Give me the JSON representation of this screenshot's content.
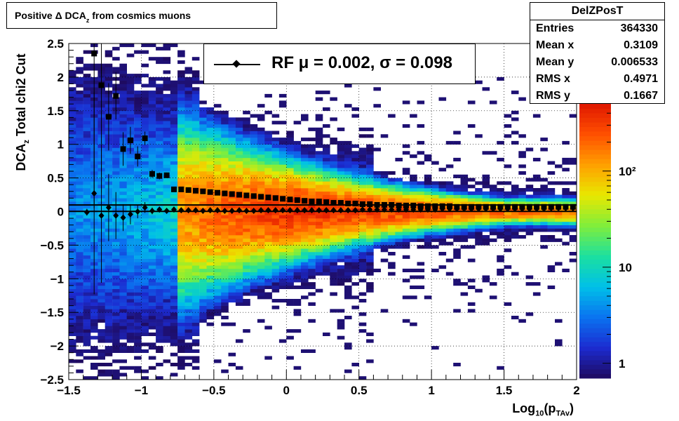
{
  "title": {
    "main": "Positive Δ DCA",
    "sub": "z",
    "rest": " from cosmics muons"
  },
  "stats": {
    "name": "DelZPosT",
    "rows": [
      {
        "label": "Entries",
        "value": "364330"
      },
      {
        "label": "Mean x",
        "value": "0.3109"
      },
      {
        "label": "Mean y",
        "value": "0.006533"
      },
      {
        "label": "RMS x",
        "value": "0.4971"
      },
      {
        "label": "RMS y",
        "value": "0.1667"
      }
    ]
  },
  "legend": {
    "text": "RF μ =  0.002, σ =   0.098"
  },
  "axes": {
    "x_title": {
      "pre": "Log",
      "sub1": "10",
      "mid": "(p",
      "sub2": "TAv",
      "post": ")"
    },
    "y_title": {
      "pre": "DCA",
      "sub": "z",
      "post": "  Total chi2 Cut"
    }
  },
  "colorbar": {
    "ticks": [
      "1",
      "10",
      "10²"
    ]
  },
  "chart_data": {
    "type": "heatmap",
    "xlim": [
      -1.5,
      2.0
    ],
    "ylim": [
      -2.5,
      2.5
    ],
    "x_ticks": [
      "−1.5",
      "−1",
      "−0.5",
      "0",
      "0.5",
      "1",
      "1.5",
      "2"
    ],
    "y_ticks": [
      "−2.5",
      "−2",
      "−1.5",
      "−1",
      "−0.5",
      "0",
      "0.5",
      "1",
      "1.5",
      "2",
      "2.5"
    ],
    "grid": true,
    "log_z": true,
    "zlim": [
      0.7,
      500
    ],
    "colormap": [
      "#1e0a5e",
      "#1c2bd0",
      "#0a73f0",
      "#00c0e8",
      "#1be0a0",
      "#7fee3c",
      "#e8e800",
      "#ffa000",
      "#ff5000",
      "#e01800"
    ],
    "mean_points": [
      {
        "x": -1.375,
        "y": -0.01,
        "err": 0.05
      },
      {
        "x": -1.325,
        "y": 0.27,
        "err": 1.5
      },
      {
        "x": -1.275,
        "y": -0.06,
        "err": 1.0
      },
      {
        "x": -1.225,
        "y": 0.06,
        "err": 0.5
      },
      {
        "x": -1.175,
        "y": -0.06,
        "err": 0.35
      },
      {
        "x": -1.125,
        "y": -0.09,
        "err": 0.2
      },
      {
        "x": -1.075,
        "y": -0.04,
        "err": 0.15
      },
      {
        "x": -1.025,
        "y": 0.0,
        "err": 0.1
      },
      {
        "x": -0.975,
        "y": 0.06,
        "err": 0.08
      },
      {
        "x": -0.925,
        "y": 0.01,
        "err": 0.05
      },
      {
        "x": -0.875,
        "y": 0.03,
        "err": 0.04
      },
      {
        "x": -0.825,
        "y": 0.01,
        "err": 0.03
      },
      {
        "x": -0.775,
        "y": 0.03,
        "err": 0.02
      },
      {
        "x": -0.725,
        "y": 0.02,
        "err": 0.0
      },
      {
        "x": -0.675,
        "y": 0.02,
        "err": 0.0
      },
      {
        "x": -0.625,
        "y": 0.02,
        "err": 0.0
      },
      {
        "x": -0.575,
        "y": 0.01,
        "err": 0.0
      },
      {
        "x": -0.525,
        "y": 0.02,
        "err": 0.0
      },
      {
        "x": -0.475,
        "y": 0.02,
        "err": 0.0
      },
      {
        "x": -0.425,
        "y": 0.01,
        "err": 0.0
      },
      {
        "x": -0.375,
        "y": 0.01,
        "err": 0.0
      },
      {
        "x": -0.325,
        "y": 0.02,
        "err": 0.0
      },
      {
        "x": -0.275,
        "y": 0.01,
        "err": 0.0
      },
      {
        "x": -0.225,
        "y": 0.01,
        "err": 0.0
      },
      {
        "x": -0.175,
        "y": 0.02,
        "err": 0.0
      },
      {
        "x": -0.125,
        "y": 0.02,
        "err": 0.0
      },
      {
        "x": -0.075,
        "y": 0.02,
        "err": 0.0
      },
      {
        "x": -0.025,
        "y": 0.02,
        "err": 0.0
      },
      {
        "x": 0.025,
        "y": 0.02,
        "err": 0.0
      },
      {
        "x": 0.075,
        "y": 0.02,
        "err": 0.0
      },
      {
        "x": 0.125,
        "y": 0.02,
        "err": 0.0
      },
      {
        "x": 0.175,
        "y": 0.02,
        "err": 0.0
      },
      {
        "x": 0.225,
        "y": 0.02,
        "err": 0.0
      },
      {
        "x": 0.275,
        "y": 0.02,
        "err": 0.0
      },
      {
        "x": 0.325,
        "y": 0.02,
        "err": 0.0
      },
      {
        "x": 0.375,
        "y": 0.02,
        "err": 0.0
      },
      {
        "x": 0.425,
        "y": 0.02,
        "err": 0.0
      },
      {
        "x": 0.475,
        "y": 0.02,
        "err": 0.0
      },
      {
        "x": 0.525,
        "y": 0.03,
        "err": 0.0
      },
      {
        "x": 0.575,
        "y": 0.03,
        "err": 0.0
      },
      {
        "x": 0.625,
        "y": 0.03,
        "err": 0.0
      },
      {
        "x": 0.675,
        "y": 0.03,
        "err": 0.0
      },
      {
        "x": 0.725,
        "y": 0.03,
        "err": 0.0
      },
      {
        "x": 0.775,
        "y": 0.03,
        "err": 0.0
      },
      {
        "x": 0.825,
        "y": 0.03,
        "err": 0.0
      },
      {
        "x": 0.875,
        "y": 0.03,
        "err": 0.0
      },
      {
        "x": 0.925,
        "y": 0.03,
        "err": 0.0
      },
      {
        "x": 0.975,
        "y": 0.03,
        "err": 0.0
      },
      {
        "x": 1.025,
        "y": 0.03,
        "err": 0.0
      },
      {
        "x": 1.075,
        "y": 0.04,
        "err": 0.0
      },
      {
        "x": 1.125,
        "y": 0.04,
        "err": 0.0
      },
      {
        "x": 1.175,
        "y": 0.04,
        "err": 0.0
      },
      {
        "x": 1.225,
        "y": 0.04,
        "err": 0.0
      },
      {
        "x": 1.275,
        "y": 0.04,
        "err": 0.0
      },
      {
        "x": 1.325,
        "y": 0.04,
        "err": 0.0
      },
      {
        "x": 1.375,
        "y": 0.04,
        "err": 0.0
      },
      {
        "x": 1.425,
        "y": 0.04,
        "err": 0.0
      },
      {
        "x": 1.475,
        "y": 0.04,
        "err": 0.0
      },
      {
        "x": 1.525,
        "y": 0.04,
        "err": 0.0
      },
      {
        "x": 1.575,
        "y": 0.04,
        "err": 0.0
      },
      {
        "x": 1.625,
        "y": 0.04,
        "err": 0.0
      },
      {
        "x": 1.675,
        "y": 0.04,
        "err": 0.0
      },
      {
        "x": 1.725,
        "y": 0.04,
        "err": 0.0
      },
      {
        "x": 1.775,
        "y": 0.04,
        "err": 0.0
      },
      {
        "x": 1.825,
        "y": 0.05,
        "err": 0.0
      },
      {
        "x": 1.875,
        "y": 0.05,
        "err": 0.0
      },
      {
        "x": 1.925,
        "y": 0.05,
        "err": 0.0
      },
      {
        "x": 1.975,
        "y": 0.05,
        "err": 0.0
      }
    ],
    "rms_points": [
      {
        "x": -1.325,
        "y": 2.35,
        "err": 2.3
      },
      {
        "x": -1.275,
        "y": 1.88,
        "err": 1.6
      },
      {
        "x": -1.225,
        "y": 1.41,
        "err": 0.5
      },
      {
        "x": -1.175,
        "y": 1.72,
        "err": 0.35
      },
      {
        "x": -1.125,
        "y": 0.93,
        "err": 0.25
      },
      {
        "x": -1.075,
        "y": 1.06,
        "err": 0.2
      },
      {
        "x": -1.025,
        "y": 0.82,
        "err": 0.15
      },
      {
        "x": -0.975,
        "y": 1.09,
        "err": 0.1
      },
      {
        "x": -0.925,
        "y": 0.56,
        "err": 0.06
      },
      {
        "x": -0.875,
        "y": 0.53,
        "err": 0.05
      },
      {
        "x": -0.825,
        "y": 0.54,
        "err": 0.04
      },
      {
        "x": -0.775,
        "y": 0.33,
        "err": 0.02
      },
      {
        "x": -0.725,
        "y": 0.33,
        "err": 0.0
      },
      {
        "x": -0.675,
        "y": 0.32,
        "err": 0.0
      },
      {
        "x": -0.625,
        "y": 0.31,
        "err": 0.0
      },
      {
        "x": -0.575,
        "y": 0.3,
        "err": 0.0
      },
      {
        "x": -0.525,
        "y": 0.29,
        "err": 0.0
      },
      {
        "x": -0.475,
        "y": 0.28,
        "err": 0.0
      },
      {
        "x": -0.425,
        "y": 0.27,
        "err": 0.0
      },
      {
        "x": -0.375,
        "y": 0.26,
        "err": 0.0
      },
      {
        "x": -0.325,
        "y": 0.25,
        "err": 0.0
      },
      {
        "x": -0.275,
        "y": 0.24,
        "err": 0.0
      },
      {
        "x": -0.225,
        "y": 0.23,
        "err": 0.0
      },
      {
        "x": -0.175,
        "y": 0.22,
        "err": 0.0
      },
      {
        "x": -0.125,
        "y": 0.21,
        "err": 0.0
      },
      {
        "x": -0.075,
        "y": 0.2,
        "err": 0.0
      },
      {
        "x": -0.025,
        "y": 0.19,
        "err": 0.0
      },
      {
        "x": 0.025,
        "y": 0.18,
        "err": 0.0
      },
      {
        "x": 0.075,
        "y": 0.17,
        "err": 0.0
      },
      {
        "x": 0.125,
        "y": 0.16,
        "err": 0.0
      },
      {
        "x": 0.175,
        "y": 0.15,
        "err": 0.0
      },
      {
        "x": 0.225,
        "y": 0.15,
        "err": 0.0
      },
      {
        "x": 0.275,
        "y": 0.14,
        "err": 0.0
      },
      {
        "x": 0.325,
        "y": 0.13,
        "err": 0.0
      },
      {
        "x": 0.375,
        "y": 0.13,
        "err": 0.0
      },
      {
        "x": 0.425,
        "y": 0.12,
        "err": 0.0
      },
      {
        "x": 0.475,
        "y": 0.12,
        "err": 0.0
      },
      {
        "x": 0.525,
        "y": 0.11,
        "err": 0.0
      },
      {
        "x": 0.575,
        "y": 0.11,
        "err": 0.0
      },
      {
        "x": 0.625,
        "y": 0.1,
        "err": 0.0
      },
      {
        "x": 0.675,
        "y": 0.1,
        "err": 0.0
      },
      {
        "x": 0.725,
        "y": 0.1,
        "err": 0.0
      },
      {
        "x": 0.775,
        "y": 0.09,
        "err": 0.0
      },
      {
        "x": 0.825,
        "y": 0.09,
        "err": 0.0
      },
      {
        "x": 0.875,
        "y": 0.09,
        "err": 0.0
      },
      {
        "x": 0.925,
        "y": 0.08,
        "err": 0.0
      },
      {
        "x": 0.975,
        "y": 0.08,
        "err": 0.0
      },
      {
        "x": 1.025,
        "y": 0.08,
        "err": 0.0
      },
      {
        "x": 1.075,
        "y": 0.08,
        "err": 0.0
      },
      {
        "x": 1.125,
        "y": 0.08,
        "err": 0.0
      },
      {
        "x": 1.175,
        "y": 0.07,
        "err": 0.0
      },
      {
        "x": 1.225,
        "y": 0.07,
        "err": 0.0
      },
      {
        "x": 1.275,
        "y": 0.07,
        "err": 0.0
      },
      {
        "x": 1.325,
        "y": 0.07,
        "err": 0.0
      },
      {
        "x": 1.375,
        "y": 0.07,
        "err": 0.0
      },
      {
        "x": 1.425,
        "y": 0.07,
        "err": 0.0
      },
      {
        "x": 1.475,
        "y": 0.07,
        "err": 0.0
      },
      {
        "x": 1.525,
        "y": 0.07,
        "err": 0.0
      },
      {
        "x": 1.575,
        "y": 0.07,
        "err": 0.0
      },
      {
        "x": 1.625,
        "y": 0.07,
        "err": 0.0
      },
      {
        "x": 1.675,
        "y": 0.07,
        "err": 0.0
      },
      {
        "x": 1.725,
        "y": 0.07,
        "err": 0.0
      },
      {
        "x": 1.775,
        "y": 0.07,
        "err": 0.0
      },
      {
        "x": 1.825,
        "y": 0.07,
        "err": 0.0
      },
      {
        "x": 1.875,
        "y": 0.07,
        "err": 0.0
      },
      {
        "x": 1.925,
        "y": 0.07,
        "err": 0.0
      },
      {
        "x": 1.975,
        "y": 0.07,
        "err": 0.0
      }
    ],
    "ref_lines": [
      0.002,
      0.098
    ]
  }
}
